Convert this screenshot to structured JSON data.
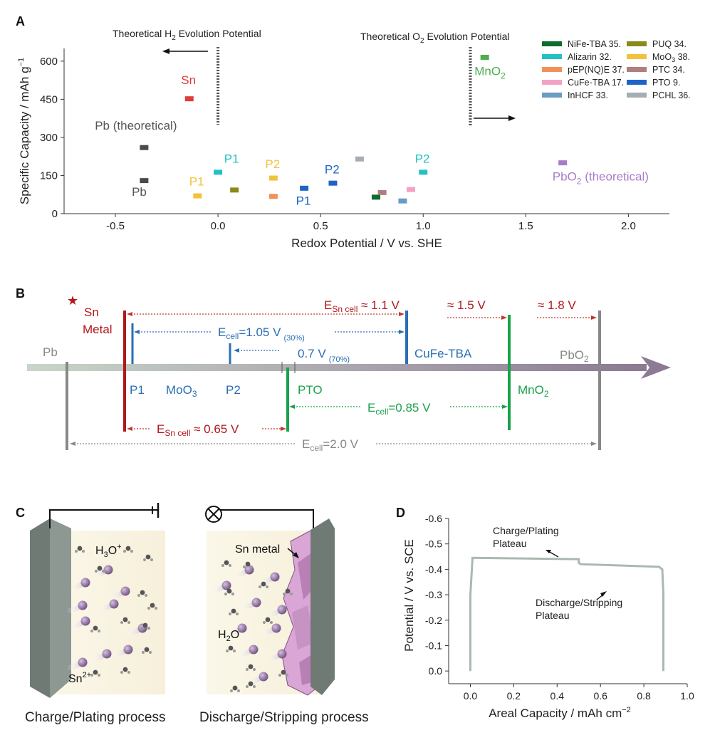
{
  "panel_labels": {
    "a": "A",
    "b": "B",
    "c": "C",
    "d": "D"
  },
  "chart_data": [
    {
      "panel": "A",
      "type": "scatter",
      "xlabel": "Redox Potential / V vs. SHE",
      "ylabel": "Specific Capacity / mAh g",
      "ylabel_sup": "−1",
      "xlim": [
        -0.75,
        2.2
      ],
      "ylim": [
        0,
        650
      ],
      "xticks": [
        -0.5,
        0.0,
        0.5,
        1.0,
        1.5,
        2.0
      ],
      "xtick_labels": [
        "-0.5",
        "0.0",
        "0.5",
        "1.0",
        "1.5",
        "2.0"
      ],
      "yticks": [
        0,
        150,
        300,
        450,
        600
      ],
      "ytick_labels": [
        "0",
        "150",
        "300",
        "450",
        "600"
      ],
      "annotations": {
        "h2_pre": "Theoretical H",
        "h2_sub": "2",
        "h2_post": " Evolution Potential",
        "o2_pre": "Theoretical O",
        "o2_sub": "2",
        "o2_post": " Evolution Potential",
        "h2_x": 0.0,
        "o2_x": 1.23
      },
      "legend": [
        {
          "name": "NiFe-TBA 35.",
          "color": "#0d6b2c"
        },
        {
          "name": "Alizarin 32.",
          "color": "#22c1c3"
        },
        {
          "name": "pEP(NQ)E 37.",
          "color": "#f0915a"
        },
        {
          "name": "CuFe-TBA 17.",
          "color": "#f2a3c4"
        },
        {
          "name": "InHCF 33.",
          "color": "#6b9cc2"
        },
        {
          "name": "PUQ 34.",
          "color": "#8a8a1c"
        },
        {
          "name": "MoO",
          "sub": "3",
          "after": " 38.",
          "color": "#f2c23c"
        },
        {
          "name": "PTC 34.",
          "color": "#b07e7e"
        },
        {
          "name": "PTO 9.",
          "color": "#1e64c8"
        },
        {
          "name": "PCHL 36.",
          "color": "#a6adb3"
        }
      ],
      "points": [
        {
          "x": -0.36,
          "y": 260,
          "color": "#4a4a4a"
        },
        {
          "x": -0.36,
          "y": 130,
          "color": "#4a4a4a"
        },
        {
          "x": -0.14,
          "y": 452,
          "color": "#e03c3c"
        },
        {
          "x": -0.1,
          "y": 70,
          "color": "#f2c23c"
        },
        {
          "x": 0.0,
          "y": 163,
          "color": "#22c1c3"
        },
        {
          "x": 0.08,
          "y": 93,
          "color": "#8a8a1c"
        },
        {
          "x": 0.27,
          "y": 68,
          "color": "#f0915a"
        },
        {
          "x": 0.27,
          "y": 140,
          "color": "#f2c23c"
        },
        {
          "x": 0.42,
          "y": 100,
          "color": "#1e64c8"
        },
        {
          "x": 0.56,
          "y": 120,
          "color": "#1e64c8"
        },
        {
          "x": 0.69,
          "y": 215,
          "color": "#a6adb3"
        },
        {
          "x": 0.77,
          "y": 65,
          "color": "#0d6b2c"
        },
        {
          "x": 0.8,
          "y": 83,
          "color": "#b07e7e"
        },
        {
          "x": 0.9,
          "y": 50,
          "color": "#6b9cc2"
        },
        {
          "x": 0.94,
          "y": 95,
          "color": "#f2a3c4"
        },
        {
          "x": 1.0,
          "y": 163,
          "color": "#22c1c3"
        },
        {
          "x": 1.3,
          "y": 615,
          "color": "#4caf50"
        },
        {
          "x": 1.68,
          "y": 200,
          "color": "#a67cc7"
        }
      ],
      "labels": [
        {
          "text": "Pb (theoretical)",
          "x": -0.6,
          "y": 330,
          "color": "#555555"
        },
        {
          "text": "Pb",
          "x": -0.42,
          "y": 70,
          "color": "#555555"
        },
        {
          "text": "Sn",
          "x": -0.18,
          "y": 510,
          "color": "#e03c3c"
        },
        {
          "text": "P1",
          "x": -0.14,
          "y": 110,
          "color": "#f2c23c"
        },
        {
          "text": "P1",
          "x": 0.03,
          "y": 200,
          "color": "#22c1c3"
        },
        {
          "text": "P2",
          "x": 0.23,
          "y": 180,
          "color": "#f2c23c"
        },
        {
          "text": "P1",
          "x": 0.38,
          "y": 35,
          "color": "#1e64c8"
        },
        {
          "text": "P2",
          "x": 0.52,
          "y": 158,
          "color": "#1e64c8"
        },
        {
          "text": "P2",
          "x": 0.96,
          "y": 200,
          "color": "#22c1c3"
        },
        {
          "text": "MnO",
          "sub": "2",
          "x": 1.25,
          "y": 545,
          "color": "#4caf50"
        },
        {
          "text": "PbO",
          "sub": "2",
          "after": " (theoretical)",
          "x": 1.63,
          "y": 130,
          "color": "#a67cc7"
        }
      ]
    },
    {
      "panel": "D",
      "type": "line",
      "xlabel": "Areal Capacity / mAh cm",
      "xlabel_sup": "−2",
      "ylabel": "Potential / V vs. SCE",
      "xlim": [
        -0.1,
        1.0
      ],
      "ylim": [
        0.05,
        -0.6
      ],
      "xticks": [
        0.0,
        0.2,
        0.4,
        0.6,
        0.8,
        1.0
      ],
      "xtick_labels": [
        "0.0",
        "0.2",
        "0.4",
        "0.6",
        "0.8",
        "1.0"
      ],
      "yticks": [
        0.0,
        -0.1,
        -0.2,
        -0.3,
        -0.4,
        -0.5,
        -0.6
      ],
      "ytick_labels": [
        "0.0",
        "-0.1",
        "-0.2",
        "-0.3",
        "-0.4",
        "-0.5",
        "-0.6"
      ],
      "line_color": "#a9b9ae",
      "series": [
        {
          "x": [
            0.0,
            0.0,
            0.01,
            0.5,
            0.5,
            0.51,
            0.87,
            0.885,
            0.89,
            0.89
          ],
          "y": [
            0.0,
            -0.3,
            -0.445,
            -0.44,
            -0.425,
            -0.42,
            -0.41,
            -0.4,
            -0.3,
            0.0
          ]
        }
      ],
      "annotations": {
        "charge_l1": "Charge/Plating",
        "charge_l2": "Plateau",
        "discharge_l1": "Discharge/Stripping",
        "discharge_l2": "Plateau"
      }
    }
  ],
  "panel_b": {
    "sn_star": "★",
    "sn_l1": "Sn",
    "sn_l2": "Metal",
    "pb": "Pb",
    "pbo2_pre": "PbO",
    "pbo2_sub": "2",
    "p1": "P1",
    "moo3_pre": "MoO",
    "moo3_sub": "3",
    "p2": "P2",
    "pto": "PTO",
    "cufe": "CuFe-TBA",
    "mno2_pre": "MnO",
    "mno2_sub": "2",
    "e_sn_cell_pre": "E",
    "e_sn_cell_sub": "Sn cell",
    "e_sn_cell_post": " ≈ 1.1 V",
    "approx_15": "≈ 1.5 V",
    "approx_18": "≈ 1.8 V",
    "e105_pre": "E",
    "e105_sub": "cell",
    "e105_post": "=1.05 V",
    "e105_pct": "(30%)",
    "e07": "0.7 V",
    "e07_pct": "(70%)",
    "e085_pre": "E",
    "e085_sub": "cell",
    "e085_post": "=0.85 V",
    "e065_pre": "E",
    "e065_sub": "Sn cell",
    "e065_post": " ≈ 0.65 V",
    "e20_pre": "E",
    "e20_sub": "cell",
    "e20_post": "=2.0 V"
  },
  "panel_c": {
    "h3o_pre": "H",
    "h3o_sub": "3",
    "h3o_mid": "O",
    "h3o_sup": "+",
    "sn2_pre": "Sn",
    "sn2_sup": "2+",
    "h2o_pre": "H",
    "h2o_sub": "2",
    "h2o_post": "O",
    "sn_metal": "Sn metal",
    "caption_left": "Charge/Plating process",
    "caption_right": "Discharge/Stripping process"
  }
}
